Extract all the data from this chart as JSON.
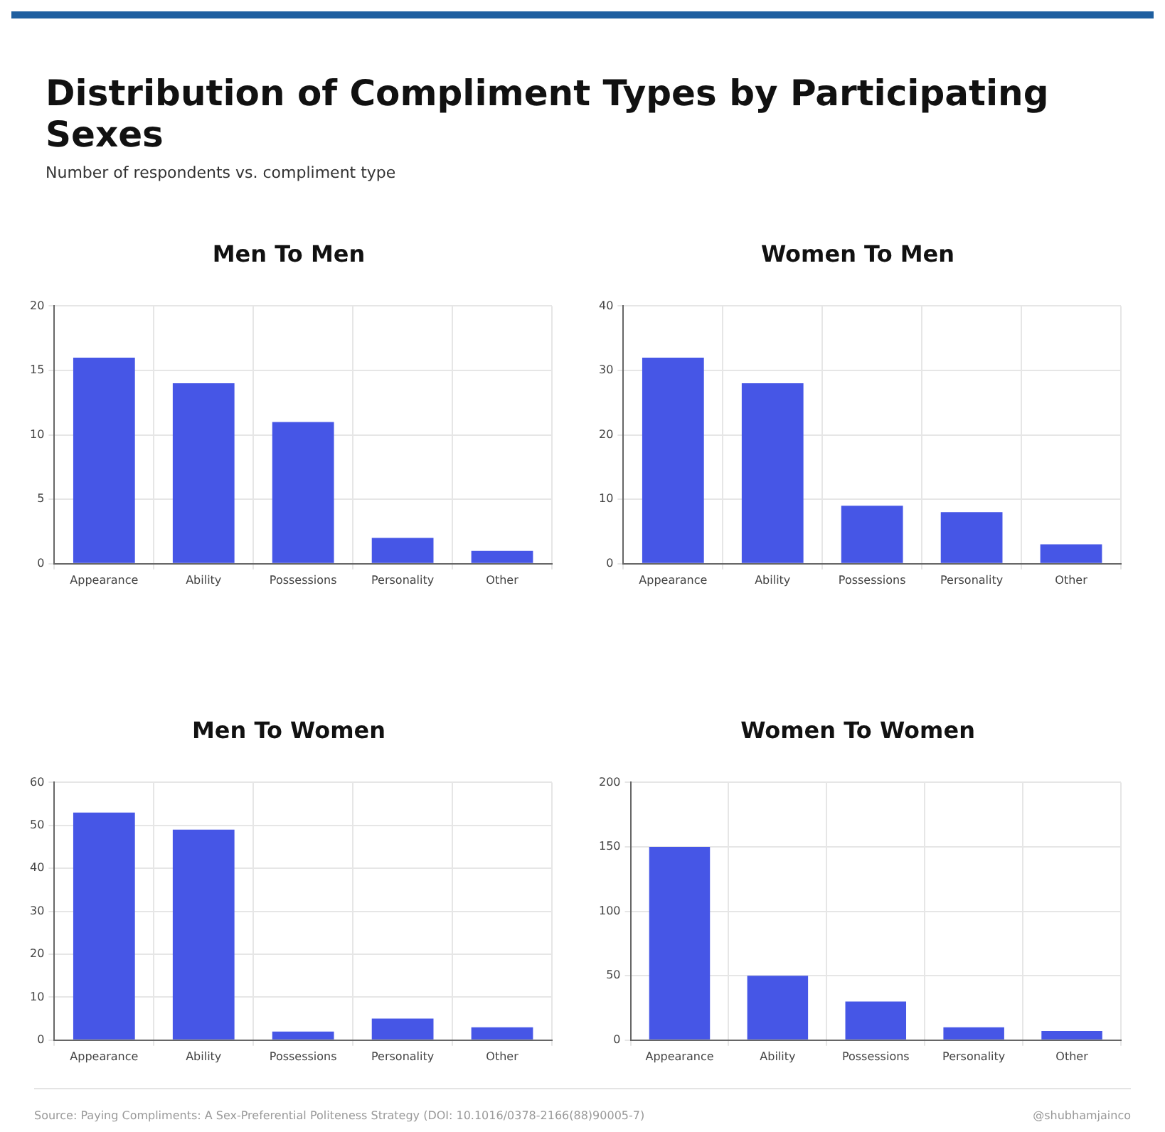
{
  "chart_data": [
    {
      "type": "other",
      "title": "Distribution of Compliment Types by Participating Sexes",
      "subtitle": "Number of respondents vs. compliment type",
      "annotations": [
        "Source: Paying Compliments: A Sex-Preferential Politeness Strategy (DOI: 10.1016/0378-2166(88)90005-7)",
        "@shubhamjainco"
      ]
    },
    {
      "type": "bar",
      "title": "Men To Men",
      "categories": [
        "Appearance",
        "Ability",
        "Possessions",
        "Personality",
        "Other"
      ],
      "values": [
        16,
        14,
        11,
        2,
        1
      ],
      "color": "#4656e6",
      "ylim": [
        0,
        20
      ],
      "yticks": [
        0,
        5,
        10,
        15,
        20
      ],
      "grid": true
    },
    {
      "type": "bar",
      "title": "Women To Men",
      "categories": [
        "Appearance",
        "Ability",
        "Possessions",
        "Personality",
        "Other"
      ],
      "values": [
        32,
        28,
        9,
        8,
        3
      ],
      "color": "#4656e6",
      "ylim": [
        0,
        40
      ],
      "yticks": [
        0,
        10,
        20,
        30,
        40
      ],
      "grid": true
    },
    {
      "type": "bar",
      "title": "Men To Women",
      "categories": [
        "Appearance",
        "Ability",
        "Possessions",
        "Personality",
        "Other"
      ],
      "values": [
        53,
        49,
        2,
        5,
        3
      ],
      "color": "#4656e6",
      "ylim": [
        0,
        60
      ],
      "yticks": [
        0,
        10,
        20,
        30,
        40,
        50,
        60
      ],
      "grid": true
    },
    {
      "type": "bar",
      "title": "Women To Women",
      "categories": [
        "Appearance",
        "Ability",
        "Possessions",
        "Personality",
        "Other"
      ],
      "values": [
        150,
        50,
        30,
        10,
        7
      ],
      "color": "#4656e6",
      "ylim": [
        0,
        200
      ],
      "yticks": [
        0,
        50,
        100,
        150,
        200
      ],
      "grid": true
    }
  ]
}
